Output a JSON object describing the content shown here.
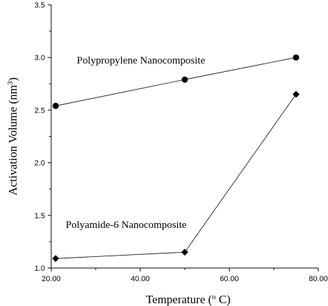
{
  "chart_data": {
    "type": "line",
    "title": "",
    "xlabel": "Temperature (",
    "xlabel_sup": "o",
    "xlabel_end": " C)",
    "ylabel": "Activation Volume (nm",
    "ylabel_sup": "3",
    "ylabel_end": ")",
    "xlim": [
      20,
      80
    ],
    "ylim": [
      1.0,
      3.5
    ],
    "x_ticks": [
      20,
      40,
      60,
      80
    ],
    "x_tick_labels": [
      "20.00",
      "40.00",
      "60.00",
      "80.00"
    ],
    "y_ticks": [
      1.0,
      1.5,
      2.0,
      2.5,
      3.0,
      3.5
    ],
    "y_tick_labels": [
      "1.0",
      "1.5",
      "2.0",
      "2.5",
      "3.0",
      "3.5"
    ],
    "grid": false,
    "series": [
      {
        "name": "Polypropylene Nanocomposite",
        "marker": "circle",
        "color": "#000000",
        "x": [
          21,
          50,
          75
        ],
        "y": [
          2.54,
          2.79,
          3.0
        ]
      },
      {
        "name": "Polyamide-6 Nanocomposite",
        "marker": "diamond",
        "color": "#000000",
        "x": [
          21,
          50,
          75
        ],
        "y": [
          1.09,
          1.15,
          2.65
        ]
      }
    ]
  }
}
